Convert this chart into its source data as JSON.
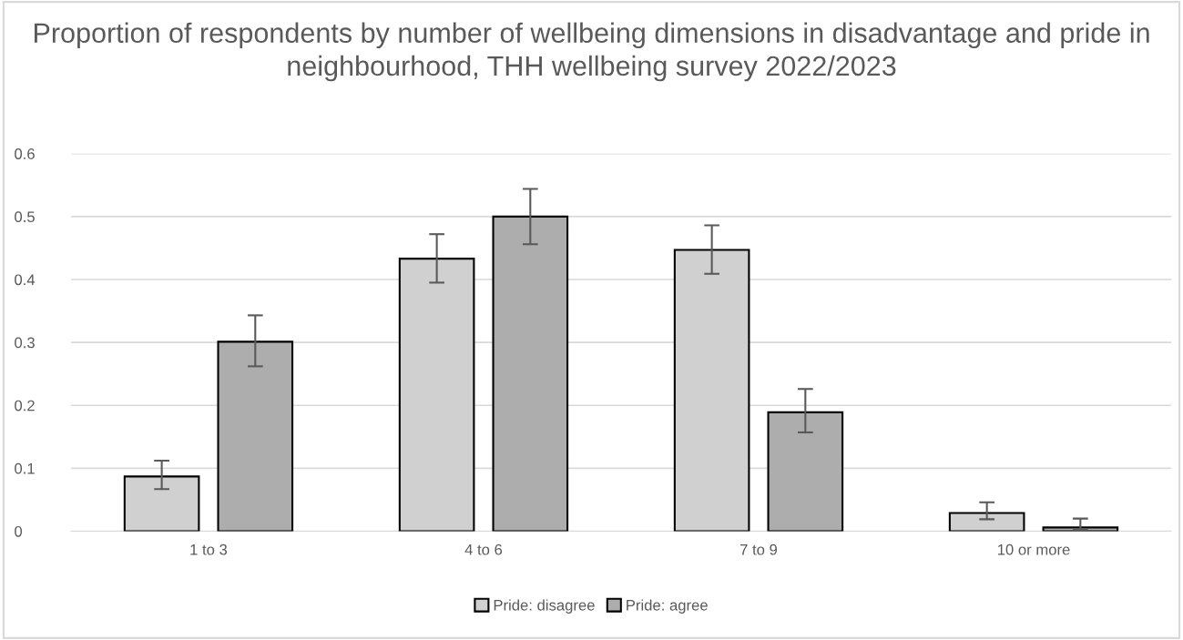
{
  "chart_data": {
    "type": "bar",
    "title": "Proportion of respondents by number of wellbeing dimensions in disadvantage and pride in neighbourhood, THH wellbeing survey 2022/2023",
    "categories": [
      "1 to 3",
      "4 to 6",
      "7 to 9",
      "10 or more"
    ],
    "series": [
      {
        "name": "Pride: disagree",
        "color": "#d0d0d0",
        "values": [
          0.087,
          0.433,
          0.447,
          0.029
        ],
        "errors": [
          [
            0.067,
            0.112
          ],
          [
            0.395,
            0.472
          ],
          [
            0.409,
            0.486
          ],
          [
            0.019,
            0.046
          ]
        ]
      },
      {
        "name": "Pride: agree",
        "color": "#adadad",
        "values": [
          0.301,
          0.5,
          0.189,
          0.006
        ],
        "errors": [
          [
            0.262,
            0.343
          ],
          [
            0.456,
            0.544
          ],
          [
            0.157,
            0.226
          ],
          [
            0.003,
            0.02
          ]
        ]
      }
    ],
    "ylim": [
      0,
      0.6
    ],
    "yticks": [
      0,
      0.1,
      0.2,
      0.3,
      0.4,
      0.5,
      0.6
    ],
    "grid": "y",
    "legend": "bottom"
  }
}
